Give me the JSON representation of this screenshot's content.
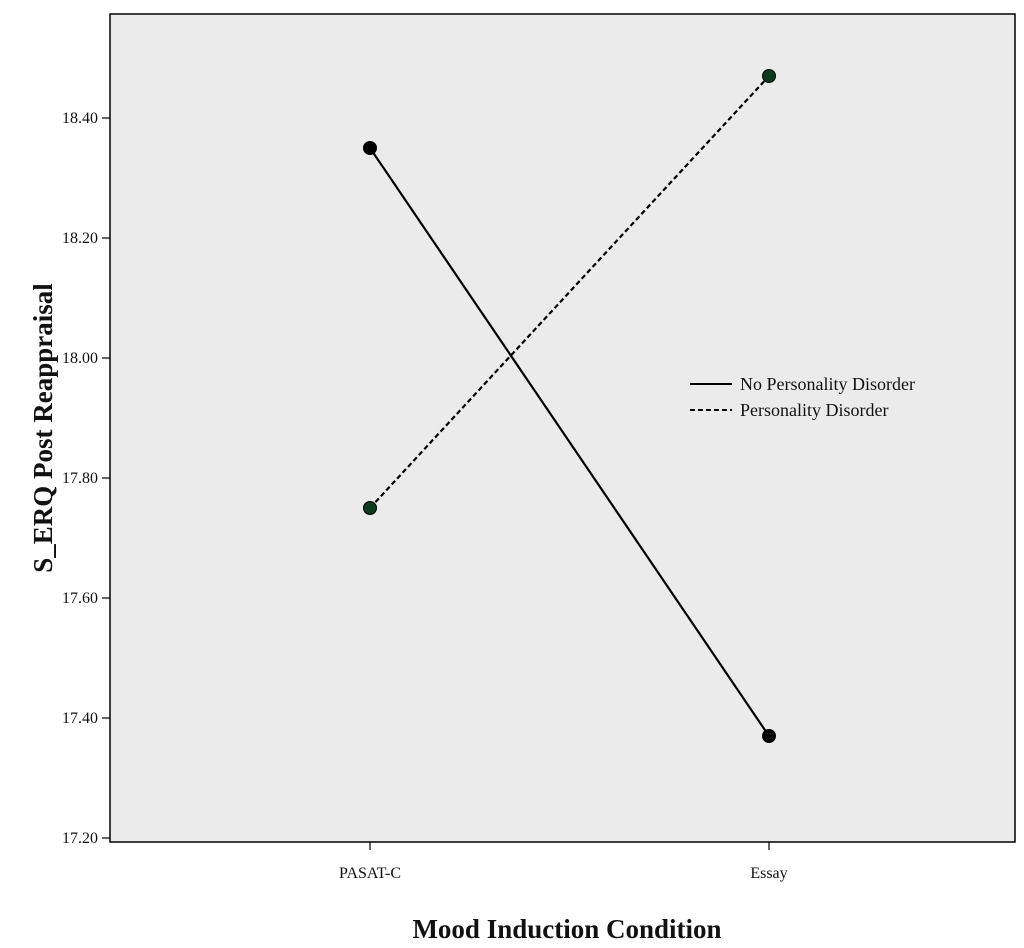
{
  "chart_data": {
    "type": "line",
    "title": "",
    "xlabel": "Mood Induction Condition",
    "ylabel": "S_ERQ Post Reappraisal",
    "categories": [
      "PASAT-C",
      "Essay"
    ],
    "ylim": [
      17.2,
      18.5
    ],
    "yticks": [
      17.2,
      17.4,
      17.6,
      17.8,
      18.0,
      18.2,
      18.4
    ],
    "ytick_labels": [
      "17.20",
      "17.40",
      "17.60",
      "17.80",
      "18.00",
      "18.20",
      "18.40"
    ],
    "grid": false,
    "legend_position": "right",
    "series": [
      {
        "name": "No Personality Disorder",
        "values": [
          18.35,
          17.37
        ],
        "line_style": "solid",
        "marker_color": "#000000"
      },
      {
        "name": "Personality Disorder",
        "values": [
          17.75,
          18.47
        ],
        "line_style": "dashed",
        "marker_color": "#0b3d1a"
      }
    ]
  },
  "colors": {
    "plot_background": "#ebebeb",
    "line": "#000000"
  }
}
